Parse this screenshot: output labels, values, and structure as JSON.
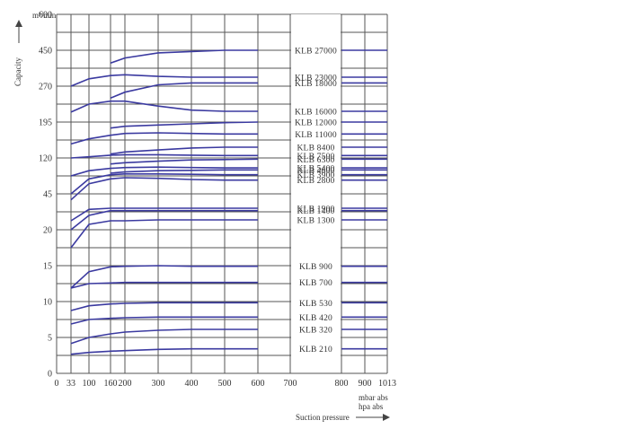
{
  "chart_data": {
    "type": "line",
    "ylabel": "Capacity",
    "yunit": "m³/min",
    "xlabel": "Suction pressure",
    "xunits": [
      "mbar abs",
      "hpa abs"
    ],
    "x_ticks": [
      "0",
      "33",
      "100",
      "160",
      "200",
      "300",
      "400",
      "500",
      "600",
      "700",
      "800",
      "900",
      "1013"
    ],
    "y_ticks": [
      "0",
      "2",
      "5",
      "7",
      "10",
      "12",
      "15",
      "17",
      "20",
      "30",
      "45",
      "75",
      "120",
      "165",
      "195",
      "240",
      "270",
      "380",
      "450",
      "550",
      "600"
    ],
    "y_tick_labels_shown": [
      "0",
      "5",
      "10",
      "15",
      "20",
      "45",
      "120",
      "195",
      "270",
      "450",
      "600"
    ],
    "x": [
      33,
      100,
      160,
      200,
      300,
      400,
      500,
      600,
      800,
      900,
      1013
    ],
    "series": [
      {
        "name": "KLB 27000",
        "values": [
          null,
          null,
          400,
          420,
          440,
          445,
          450,
          450,
          450,
          450,
          450
        ]
      },
      {
        "name": "KLB 23000",
        "values": [
          270,
          315,
          335,
          340,
          330,
          325,
          325,
          325,
          325,
          325,
          325
        ]
      },
      {
        "name": "KLB 18000",
        "values": [
          null,
          null,
          250,
          260,
          278,
          290,
          290,
          290,
          290,
          290,
          290
        ]
      },
      {
        "name": "KLB 16000",
        "values": [
          220,
          240,
          245,
          245,
          235,
          225,
          222,
          222,
          222,
          222,
          222
        ]
      },
      {
        "name": "KLB 12000",
        "values": [
          null,
          null,
          185,
          188,
          190,
          192,
          194,
          195,
          195,
          195,
          195
        ]
      },
      {
        "name": "KLB 11000",
        "values": [
          155,
          167,
          173,
          176,
          177,
          176,
          175,
          175,
          175,
          175,
          175
        ]
      },
      {
        "name": "KLB 8400",
        "values": [
          null,
          null,
          130,
          135,
          140,
          145,
          147,
          147,
          147,
          147,
          147
        ]
      },
      {
        "name": "KLB 7500",
        "values": [
          120,
          123,
          127,
          128,
          128,
          127,
          126,
          126,
          126,
          126,
          126
        ]
      },
      {
        "name": "KLB 6300",
        "values": [
          null,
          null,
          105,
          108,
          112,
          115,
          116,
          117,
          117,
          117,
          117
        ]
      },
      {
        "name": "KLB 5400",
        "values": [
          75,
          88,
          94,
          96,
          97,
          96,
          95,
          95,
          95,
          95,
          95
        ]
      },
      {
        "name": "KLB 4600",
        "values": [
          null,
          null,
          82,
          85,
          88,
          89,
          90,
          90,
          90,
          90,
          90
        ]
      },
      {
        "name": "KLB 3900",
        "values": [
          45,
          70,
          78,
          80,
          80,
          79,
          78,
          78,
          78,
          78,
          78
        ]
      },
      {
        "name": "KLB 2800",
        "values": [
          40,
          62,
          70,
          72,
          71,
          69,
          68,
          68,
          68,
          68,
          68
        ]
      },
      {
        "name": "KLB 1900",
        "values": [
          25,
          32,
          33,
          33,
          33,
          33,
          33,
          33,
          33,
          33,
          33
        ]
      },
      {
        "name": "KLB 1400",
        "values": [
          20,
          28,
          31,
          31,
          31,
          31,
          31,
          31,
          31,
          31,
          31
        ]
      },
      {
        "name": "KLB 1300",
        "values": [
          17,
          23,
          25,
          25,
          25.5,
          25.5,
          25.5,
          25.5,
          25.5,
          25.5,
          25.5
        ]
      },
      {
        "name": "KLB 900",
        "values": [
          11.5,
          14,
          14.8,
          14.9,
          15,
          14.9,
          14.9,
          14.9,
          14.9,
          14.9,
          14.9
        ]
      },
      {
        "name": "KLB 700",
        "values": [
          11.5,
          12,
          12.1,
          12.2,
          12.2,
          12.2,
          12.2,
          12.2,
          12.2,
          12.2,
          12.2
        ]
      },
      {
        "name": "KLB 530",
        "values": [
          8.5,
          9.3,
          9.6,
          9.7,
          9.8,
          9.8,
          9.8,
          9.8,
          9.8,
          9.8,
          9.8
        ]
      },
      {
        "name": "KLB 420",
        "values": [
          6.5,
          7.0,
          7.2,
          7.3,
          7.4,
          7.4,
          7.4,
          7.4,
          7.4,
          7.4,
          7.4
        ]
      },
      {
        "name": "KLB 320",
        "values": [
          4.0,
          5.0,
          5.4,
          5.6,
          5.8,
          5.9,
          5.9,
          5.9,
          5.9,
          5.9,
          5.9
        ]
      },
      {
        "name": "KLB 210",
        "values": [
          2.2,
          2.5,
          2.7,
          2.8,
          3.0,
          3.1,
          3.1,
          3.1,
          3.1,
          3.1,
          3.1
        ]
      }
    ],
    "grid": true,
    "legend": "inline-right"
  },
  "colors": {
    "curve": "#3b3aa0",
    "grid": "#555555",
    "text": "#333333"
  }
}
